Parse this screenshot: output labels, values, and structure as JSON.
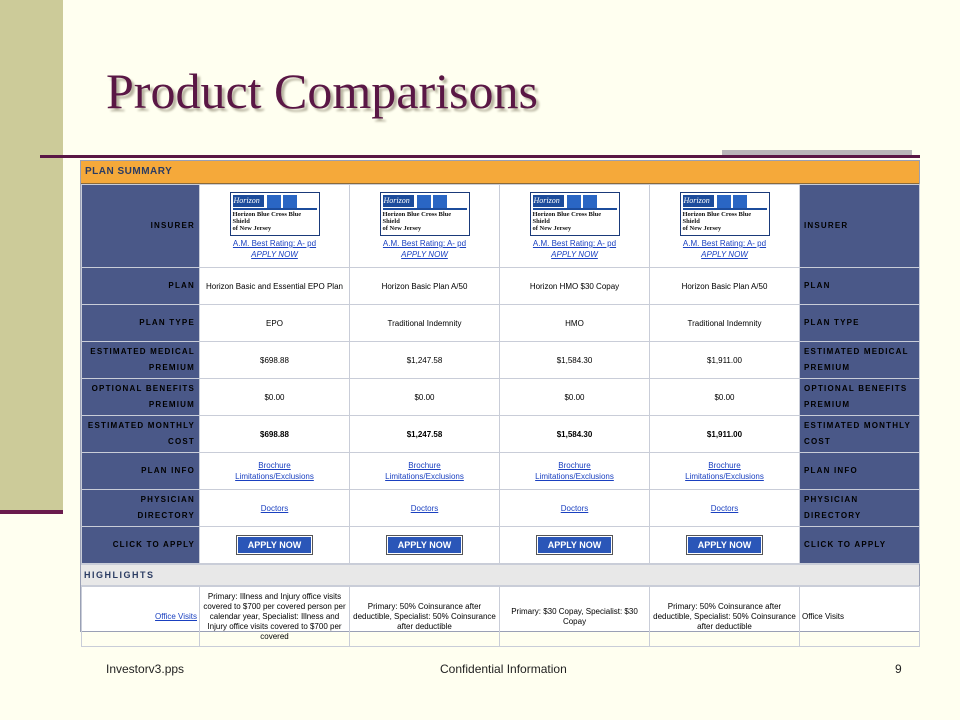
{
  "slide": {
    "title": "Product Comparisons",
    "footer_left": "Investorv3.pps",
    "footer_center": "Confidential Information",
    "footer_right": "9"
  },
  "summary": {
    "header": "PLAN SUMMARY",
    "labels": {
      "insurer": "INSURER",
      "plan": "PLAN",
      "plan_type": "PLAN TYPE",
      "medical": "ESTIMATED MEDICAL PREMIUM",
      "optional": "OPTIONAL BENEFITS PREMIUM",
      "monthly": "ESTIMATED MONTHLY COST",
      "info": "PLAN INFO",
      "directory": "PHYSICIAN DIRECTORY",
      "apply": "CLICK TO APPLY"
    },
    "logo": {
      "brand": "Horizon",
      "line1": "Horizon Blue Cross Blue Shield",
      "line2": "of New Jersey"
    },
    "plans": [
      {
        "rating": "A.M. Best Rating: A- pd",
        "apply_link": "APPLY NOW",
        "name": "Horizon Basic and Essential EPO Plan",
        "type": "EPO",
        "medical": "$698.88",
        "optional": "$0.00",
        "monthly": "$698.88",
        "brochure": "Brochure",
        "limits": "Limitations/Exclusions",
        "doctors": "Doctors",
        "apply_button": "APPLY NOW"
      },
      {
        "rating": "A.M. Best Rating: A- pd",
        "apply_link": "APPLY NOW",
        "name": "Horizon Basic Plan A/50",
        "type": "Traditional Indemnity",
        "medical": "$1,247.58",
        "optional": "$0.00",
        "monthly": "$1,247.58",
        "brochure": "Brochure",
        "limits": "Limitations/Exclusions",
        "doctors": "Doctors",
        "apply_button": "APPLY NOW"
      },
      {
        "rating": "A.M. Best Rating: A- pd",
        "apply_link": "APPLY NOW",
        "name": "Horizon HMO $30 Copay",
        "type": "HMO",
        "medical": "$1,584.30",
        "optional": "$0.00",
        "monthly": "$1,584.30",
        "brochure": "Brochure",
        "limits": "Limitations/Exclusions",
        "doctors": "Doctors",
        "apply_button": "APPLY NOW"
      },
      {
        "rating": "A.M. Best Rating: A- pd",
        "apply_link": "APPLY NOW",
        "name": "Horizon Basic Plan A/50",
        "type": "Traditional Indemnity",
        "medical": "$1,911.00",
        "optional": "$0.00",
        "monthly": "$1,911.00",
        "brochure": "Brochure",
        "limits": "Limitations/Exclusions",
        "doctors": "Doctors",
        "apply_button": "APPLY NOW"
      }
    ]
  },
  "highlights": {
    "header": "HIGHLIGHTS",
    "office_visits_label": "Office Visits",
    "office_visits_right": "Office Visits",
    "office_visits": [
      "Primary: Illness and Injury office visits covered to $700 per covered person per calendar year, Specialist: Illness and Injury office visits covered to $700 per covered",
      "Primary: 50% Coinsurance after deductible, Specialist: 50% Coinsurance after deductible",
      "Primary: $30 Copay, Specialist: $30 Copay",
      "Primary: 50% Coinsurance after deductible, Specialist: 50% Coinsurance after deductible"
    ]
  }
}
